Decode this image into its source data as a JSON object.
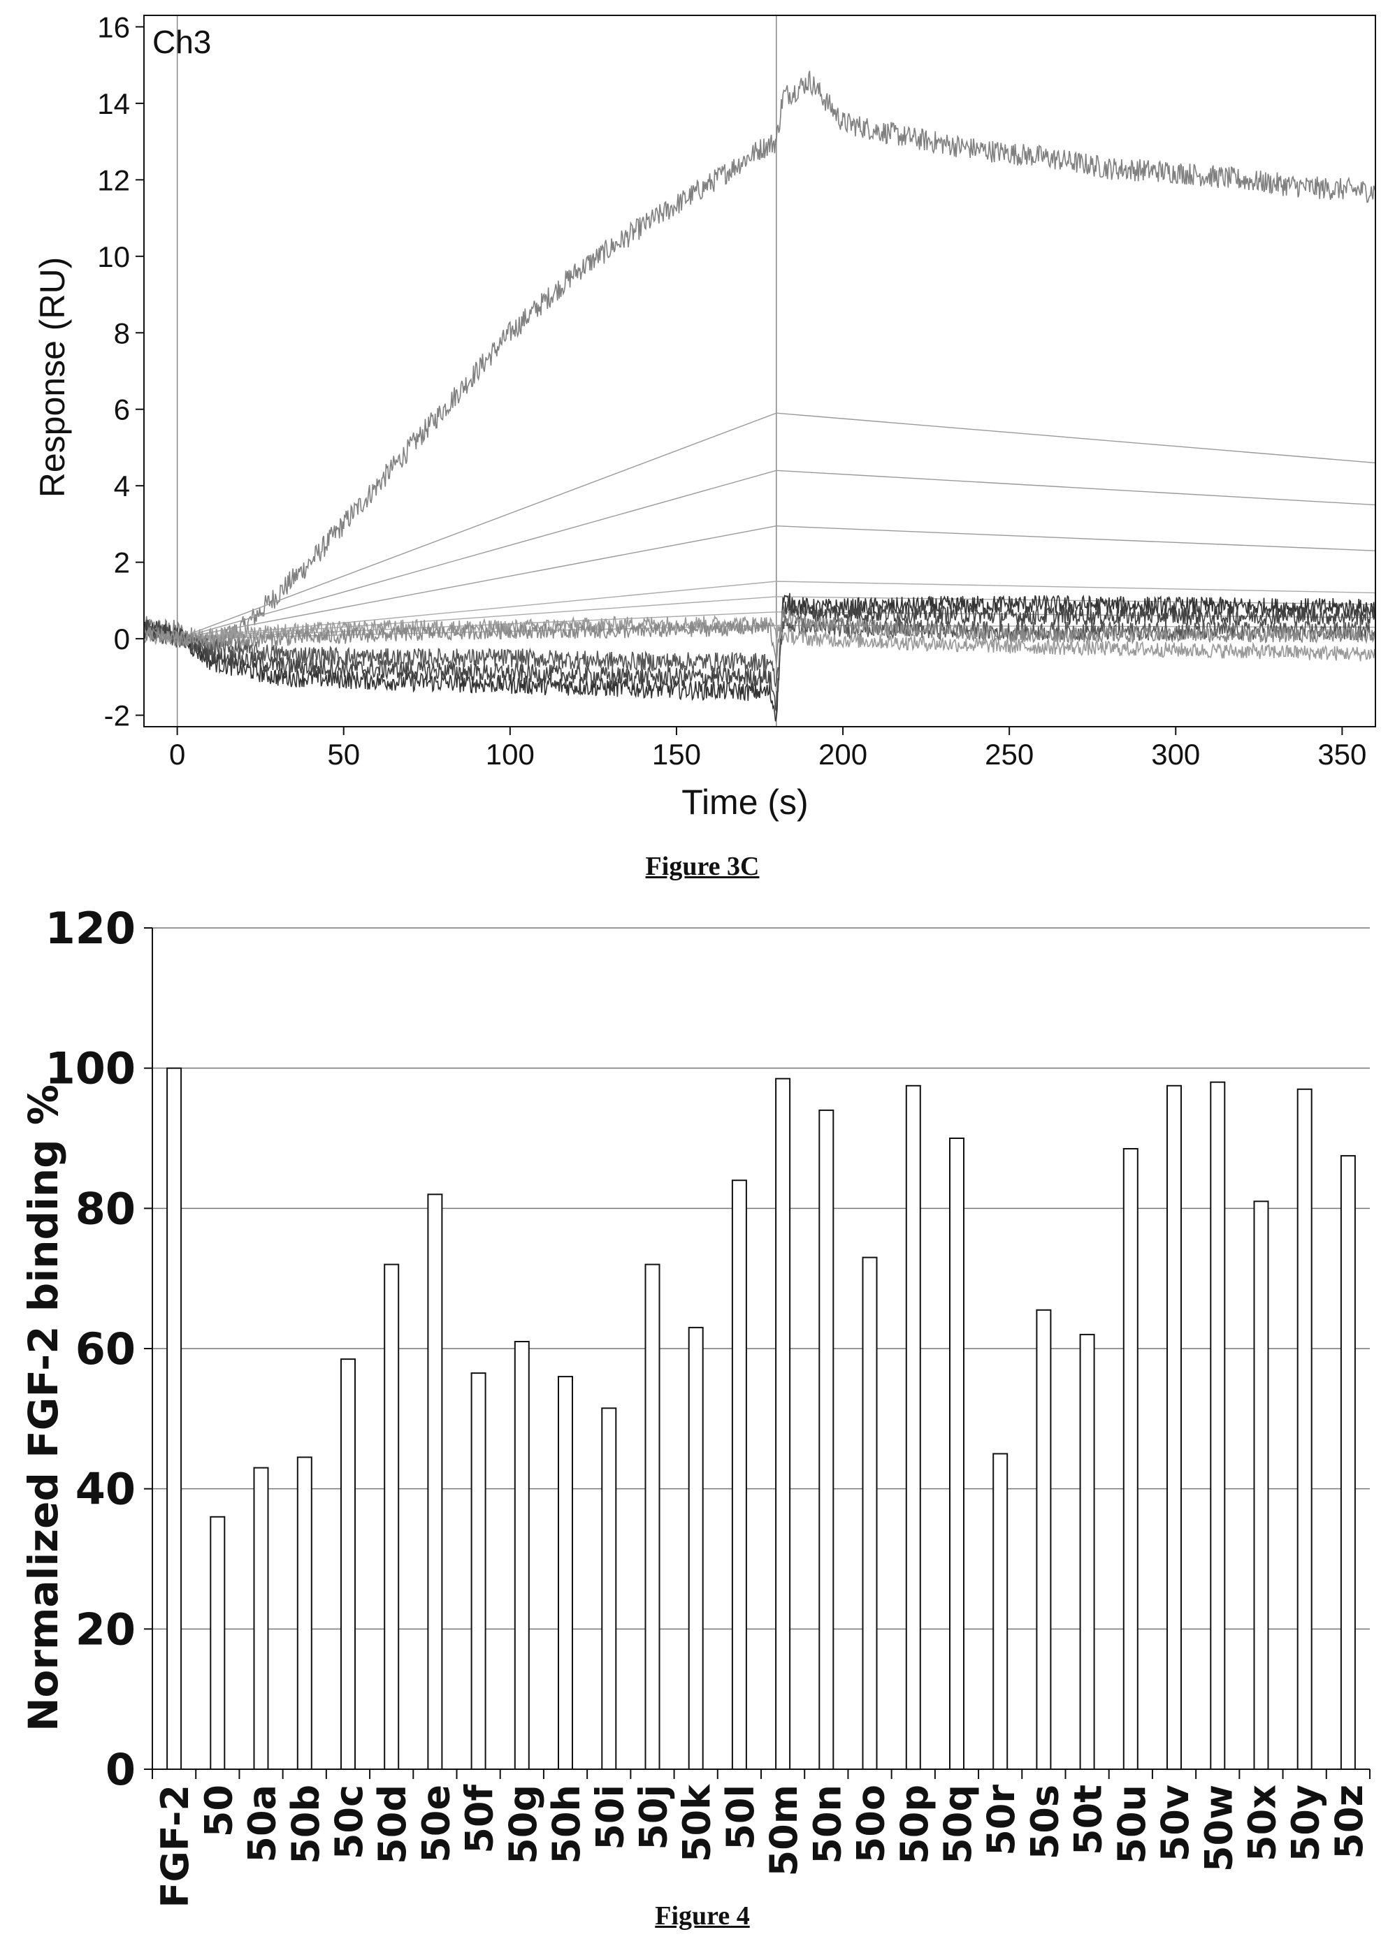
{
  "chart_data": [
    {
      "type": "line",
      "title": "",
      "annotation": "Ch3",
      "xlabel": "Time (s)",
      "ylabel": "Response (RU)",
      "xlim": [
        -10,
        360
      ],
      "ylim": [
        -2.3,
        16.3
      ],
      "x_ticks": [
        0,
        50,
        100,
        150,
        200,
        250,
        300,
        350
      ],
      "y_ticks": [
        -2,
        0,
        2,
        4,
        6,
        8,
        10,
        12,
        14,
        16
      ],
      "vertical_markers": [
        0,
        180
      ],
      "grid": false,
      "legend": "none",
      "series": [
        {
          "x": [
            -10,
            0,
            10,
            20,
            40,
            60,
            80,
            100,
            120,
            140,
            160,
            175,
            180,
            182,
            185,
            190,
            200,
            220,
            240,
            260,
            280,
            300,
            320,
            340,
            360
          ],
          "y": [
            0.3,
            0.2,
            -0.2,
            0.3,
            2.0,
            4.0,
            6.0,
            8.0,
            9.6,
            10.8,
            11.9,
            12.8,
            13.0,
            14.2,
            14.3,
            14.6,
            13.5,
            13.1,
            12.8,
            12.6,
            12.3,
            12.2,
            12.0,
            11.8,
            11.7
          ],
          "color": "#808080",
          "noise": 0.3
        },
        {
          "x": [
            0,
            180,
            360
          ],
          "y": [
            0,
            5.9,
            4.6
          ],
          "color": "#9a9a9a",
          "noise": 0
        },
        {
          "x": [
            0,
            180,
            360
          ],
          "y": [
            0,
            4.4,
            3.5
          ],
          "color": "#9a9a9a",
          "noise": 0
        },
        {
          "x": [
            0,
            180,
            360
          ],
          "y": [
            0,
            2.95,
            2.3
          ],
          "color": "#9a9a9a",
          "noise": 0
        },
        {
          "x": [
            0,
            180,
            360
          ],
          "y": [
            0,
            1.5,
            1.2
          ],
          "color": "#aaaaaa",
          "noise": 0
        },
        {
          "x": [
            0,
            180,
            360
          ],
          "y": [
            0,
            1.1,
            0.9
          ],
          "color": "#aaaaaa",
          "noise": 0
        },
        {
          "x": [
            0,
            180,
            360
          ],
          "y": [
            0,
            0.7,
            0.55
          ],
          "color": "#aaaaaa",
          "noise": 0
        },
        {
          "x": [
            0,
            180,
            360
          ],
          "y": [
            0,
            0.35,
            0.3
          ],
          "color": "#aaaaaa",
          "noise": 0
        },
        {
          "x": [
            -10,
            0,
            10,
            30,
            60,
            100,
            140,
            178,
            180,
            182,
            190,
            250,
            360
          ],
          "y": [
            0.2,
            0.1,
            -0.6,
            -1.0,
            -1.1,
            -1.2,
            -1.3,
            -1.4,
            -2.0,
            1.0,
            0.8,
            0.9,
            0.8
          ],
          "color": "#333333",
          "noise": 0.25
        },
        {
          "x": [
            -10,
            0,
            10,
            30,
            60,
            100,
            140,
            178,
            180,
            182,
            190,
            250,
            360
          ],
          "y": [
            0.3,
            0.1,
            -0.4,
            -0.7,
            -0.8,
            -0.9,
            -1.0,
            -1.0,
            -1.8,
            0.8,
            0.7,
            0.6,
            0.6
          ],
          "color": "#444444",
          "noise": 0.25
        },
        {
          "x": [
            -10,
            0,
            10,
            30,
            60,
            100,
            140,
            178,
            180,
            182,
            190,
            250,
            360
          ],
          "y": [
            0.2,
            0.0,
            -0.2,
            -0.4,
            -0.5,
            -0.5,
            -0.6,
            -0.6,
            -1.2,
            0.4,
            0.3,
            0.2,
            0.2
          ],
          "color": "#555555",
          "noise": 0.25
        },
        {
          "x": [
            -10,
            0,
            10,
            30,
            60,
            100,
            140,
            178,
            180,
            182,
            190,
            250,
            360
          ],
          "y": [
            0.1,
            0.0,
            0.1,
            0.2,
            0.3,
            0.3,
            0.4,
            0.4,
            0.2,
            0.1,
            0.0,
            -0.2,
            -0.4
          ],
          "color": "#999999",
          "noise": 0.2
        },
        {
          "x": [
            -10,
            0,
            10,
            30,
            60,
            100,
            140,
            178,
            180,
            182,
            190,
            250,
            360
          ],
          "y": [
            0.2,
            0.0,
            -0.1,
            0.0,
            0.1,
            0.2,
            0.2,
            0.3,
            -0.5,
            0.6,
            0.4,
            0.1,
            0.1
          ],
          "color": "#888888",
          "noise": 0.2
        }
      ]
    },
    {
      "type": "bar",
      "title": "",
      "ylabel": "Normalized FGF-2 binding %",
      "xlabel": "",
      "ylim": [
        0,
        120
      ],
      "y_ticks": [
        0,
        20,
        40,
        60,
        80,
        100,
        120
      ],
      "grid": true,
      "legend": "none",
      "categories": [
        "FGF-2",
        "50",
        "50a",
        "50b",
        "50c",
        "50d",
        "50e",
        "50f",
        "50g",
        "50h",
        "50i",
        "50j",
        "50k",
        "50l",
        "50m",
        "50n",
        "50o",
        "50p",
        "50q",
        "50r",
        "50s",
        "50t",
        "50u",
        "50v",
        "50w",
        "50x",
        "50y",
        "50z"
      ],
      "values": [
        100,
        36,
        43,
        44.5,
        58.5,
        72,
        82,
        56.5,
        61,
        56,
        51.5,
        72,
        63,
        84,
        98.5,
        94,
        73,
        97.5,
        90,
        45,
        65.5,
        62,
        88.5,
        97.5,
        98,
        81,
        97,
        87.5
      ]
    }
  ],
  "captions": {
    "figure_3c": "Figure 3C",
    "figure_4": "Figure 4"
  }
}
